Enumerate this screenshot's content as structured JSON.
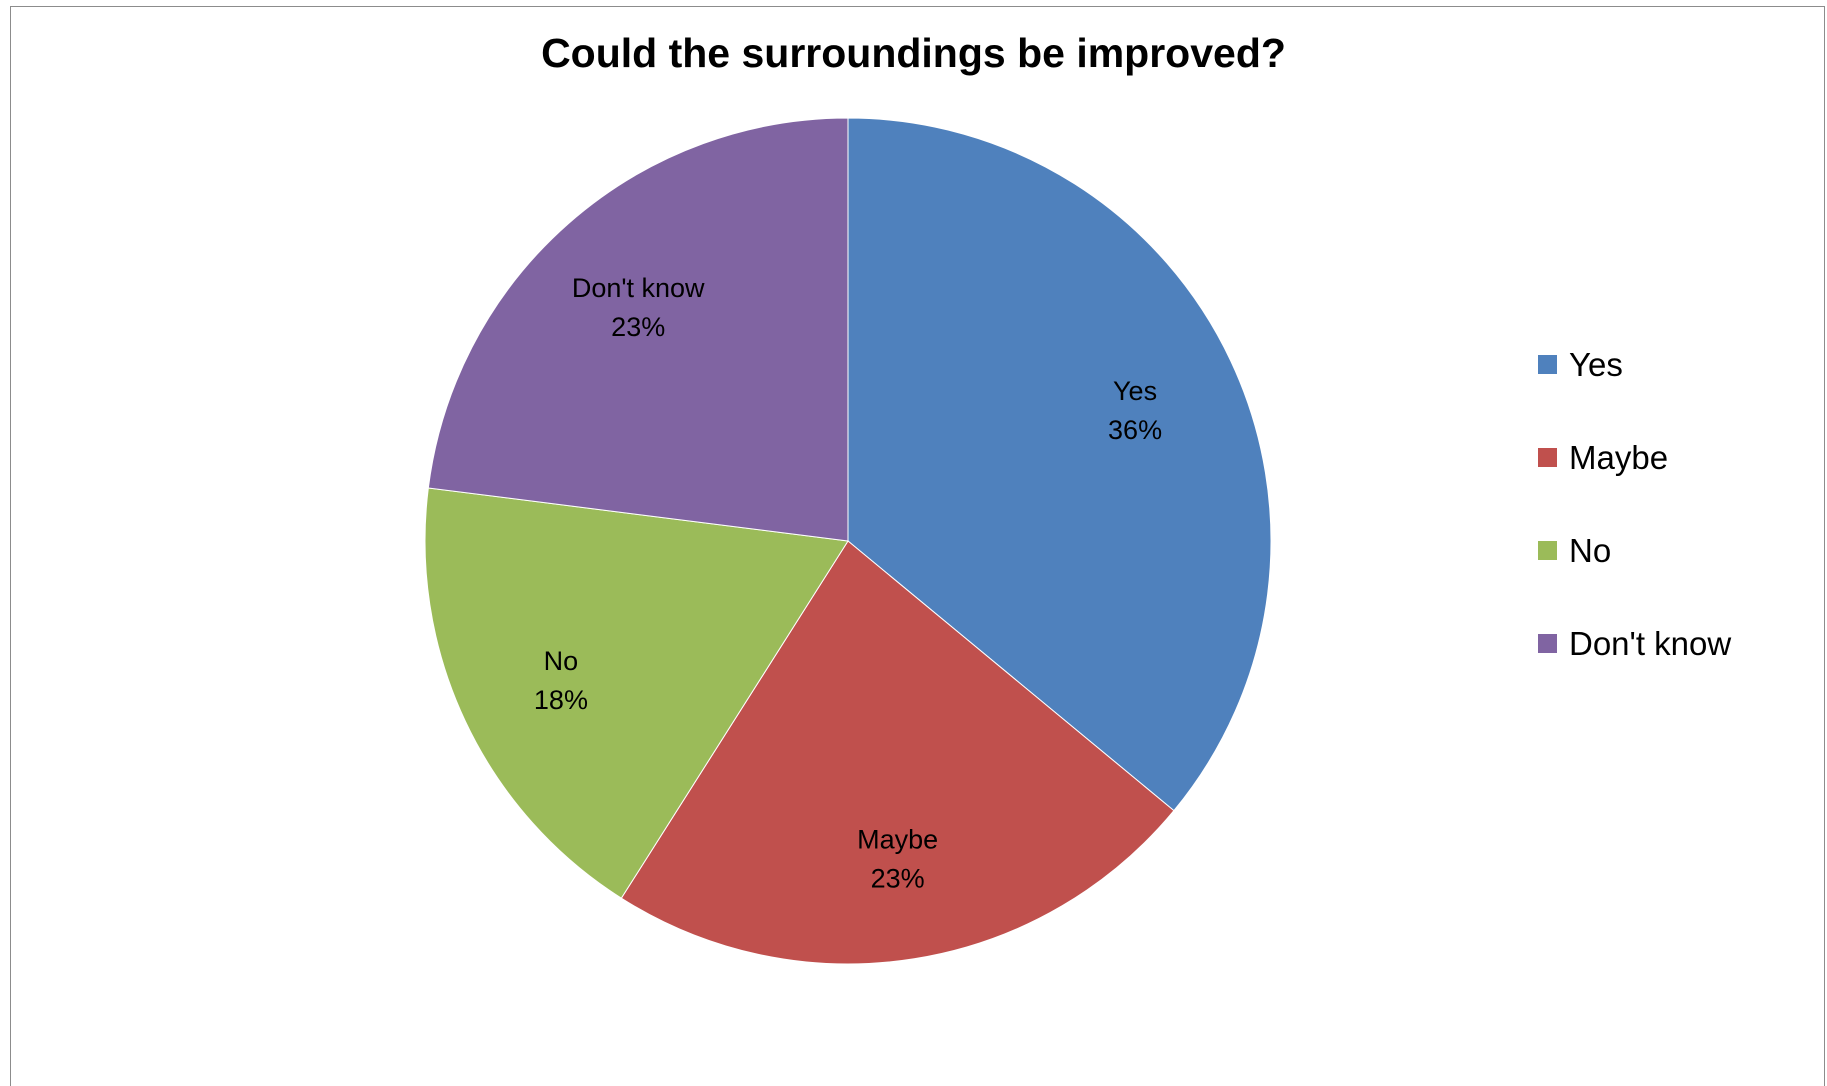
{
  "chart_data": {
    "type": "pie",
    "title": "Could the surroundings be improved?",
    "categories": [
      "Yes",
      "Maybe",
      "No",
      "Don't know"
    ],
    "values": [
      36,
      23,
      18,
      23
    ],
    "labels": [
      "36%",
      "23%",
      "18%",
      "23%"
    ],
    "colors": [
      "#4f81bd",
      "#c0504d",
      "#9bbb59",
      "#8064a2"
    ],
    "legend_position": "right"
  }
}
